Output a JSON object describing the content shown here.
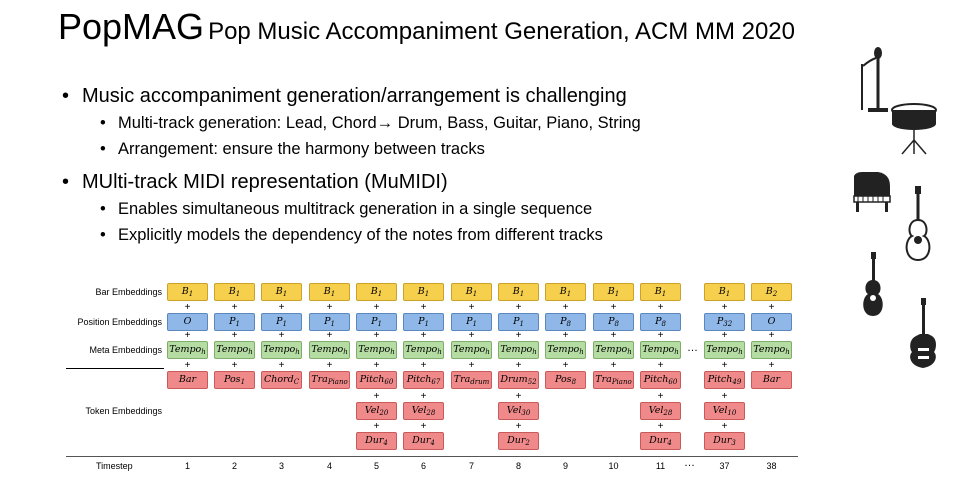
{
  "title": {
    "main": "PopMAG",
    "subtitle": "Pop Music Accompaniment Generation, ACM MM 2020"
  },
  "bullets": [
    {
      "text": "Music accompaniment generation/arrangement is challenging",
      "sub": [
        "Multi-track generation: Lead, Chord→ Drum, Bass, Guitar, Piano, String",
        "Arrangement: ensure the harmony between tracks"
      ]
    },
    {
      "text": "MUlti-track MIDI representation (MuMIDI)",
      "sub": [
        "Enables simultaneous multitrack generation in a single sequence",
        "Explicitly models the dependency of the notes from different tracks"
      ]
    }
  ],
  "icons": [
    "microphone-stand-icon",
    "snare-drum-icon",
    "grand-piano-icon",
    "acoustic-guitar-icon",
    "ukulele-icon",
    "electric-guitar-icon"
  ],
  "diagram": {
    "row_labels": {
      "bar": "Bar Embeddings",
      "pos": "Position Embeddings",
      "meta": "Meta Embeddings",
      "tok": "Token  Embeddings"
    },
    "timestep_label": "Timestep",
    "ellipsis": "…",
    "columns": [
      {
        "t": "1",
        "bar": "B|1",
        "pos": "O|",
        "meta": "Tempo|h",
        "tok": [
          "Bar|"
        ]
      },
      {
        "t": "2",
        "bar": "B|1",
        "pos": "P|1",
        "meta": "Tempo|h",
        "tok": [
          "Pos|1"
        ]
      },
      {
        "t": "3",
        "bar": "B|1",
        "pos": "P|1",
        "meta": "Tempo|h",
        "tok": [
          "Chord|C"
        ]
      },
      {
        "t": "4",
        "bar": "B|1",
        "pos": "P|1",
        "meta": "Tempo|h",
        "tok": [
          "Tra|Piano"
        ]
      },
      {
        "t": "5",
        "bar": "B|1",
        "pos": "P|1",
        "meta": "Tempo|h",
        "tok": [
          "Pitch|60",
          "Vel|20",
          "Dur|4"
        ]
      },
      {
        "t": "6",
        "bar": "B|1",
        "pos": "P|1",
        "meta": "Tempo|h",
        "tok": [
          "Pitch|67",
          "Vel|28",
          "Dur|4"
        ]
      },
      {
        "t": "7",
        "bar": "B|1",
        "pos": "P|1",
        "meta": "Tempo|h",
        "tok": [
          "Tra|drum"
        ]
      },
      {
        "t": "8",
        "bar": "B|1",
        "pos": "P|1",
        "meta": "Tempo|h",
        "tok": [
          "Drum|52",
          "Vel|30",
          "Dur|2"
        ]
      },
      {
        "t": "9",
        "bar": "B|1",
        "pos": "P|8",
        "meta": "Tempo|h",
        "tok": [
          "Pos|8"
        ]
      },
      {
        "t": "10",
        "bar": "B|1",
        "pos": "P|8",
        "meta": "Tempo|h",
        "tok": [
          "Tra|Piano"
        ]
      },
      {
        "t": "11",
        "bar": "B|1",
        "pos": "P|8",
        "meta": "Tempo|h",
        "tok": [
          "Pitch|60",
          "Vel|28",
          "Dur|4"
        ]
      },
      {
        "t": "37",
        "bar": "B|1",
        "pos": "P|32",
        "meta": "Tempo|h",
        "tok": [
          "Pitch|49",
          "Vel|10",
          "Dur|3"
        ]
      },
      {
        "t": "38",
        "bar": "B|2",
        "pos": "O|",
        "meta": "Tempo|h",
        "tok": [
          "Bar|"
        ]
      }
    ]
  }
}
